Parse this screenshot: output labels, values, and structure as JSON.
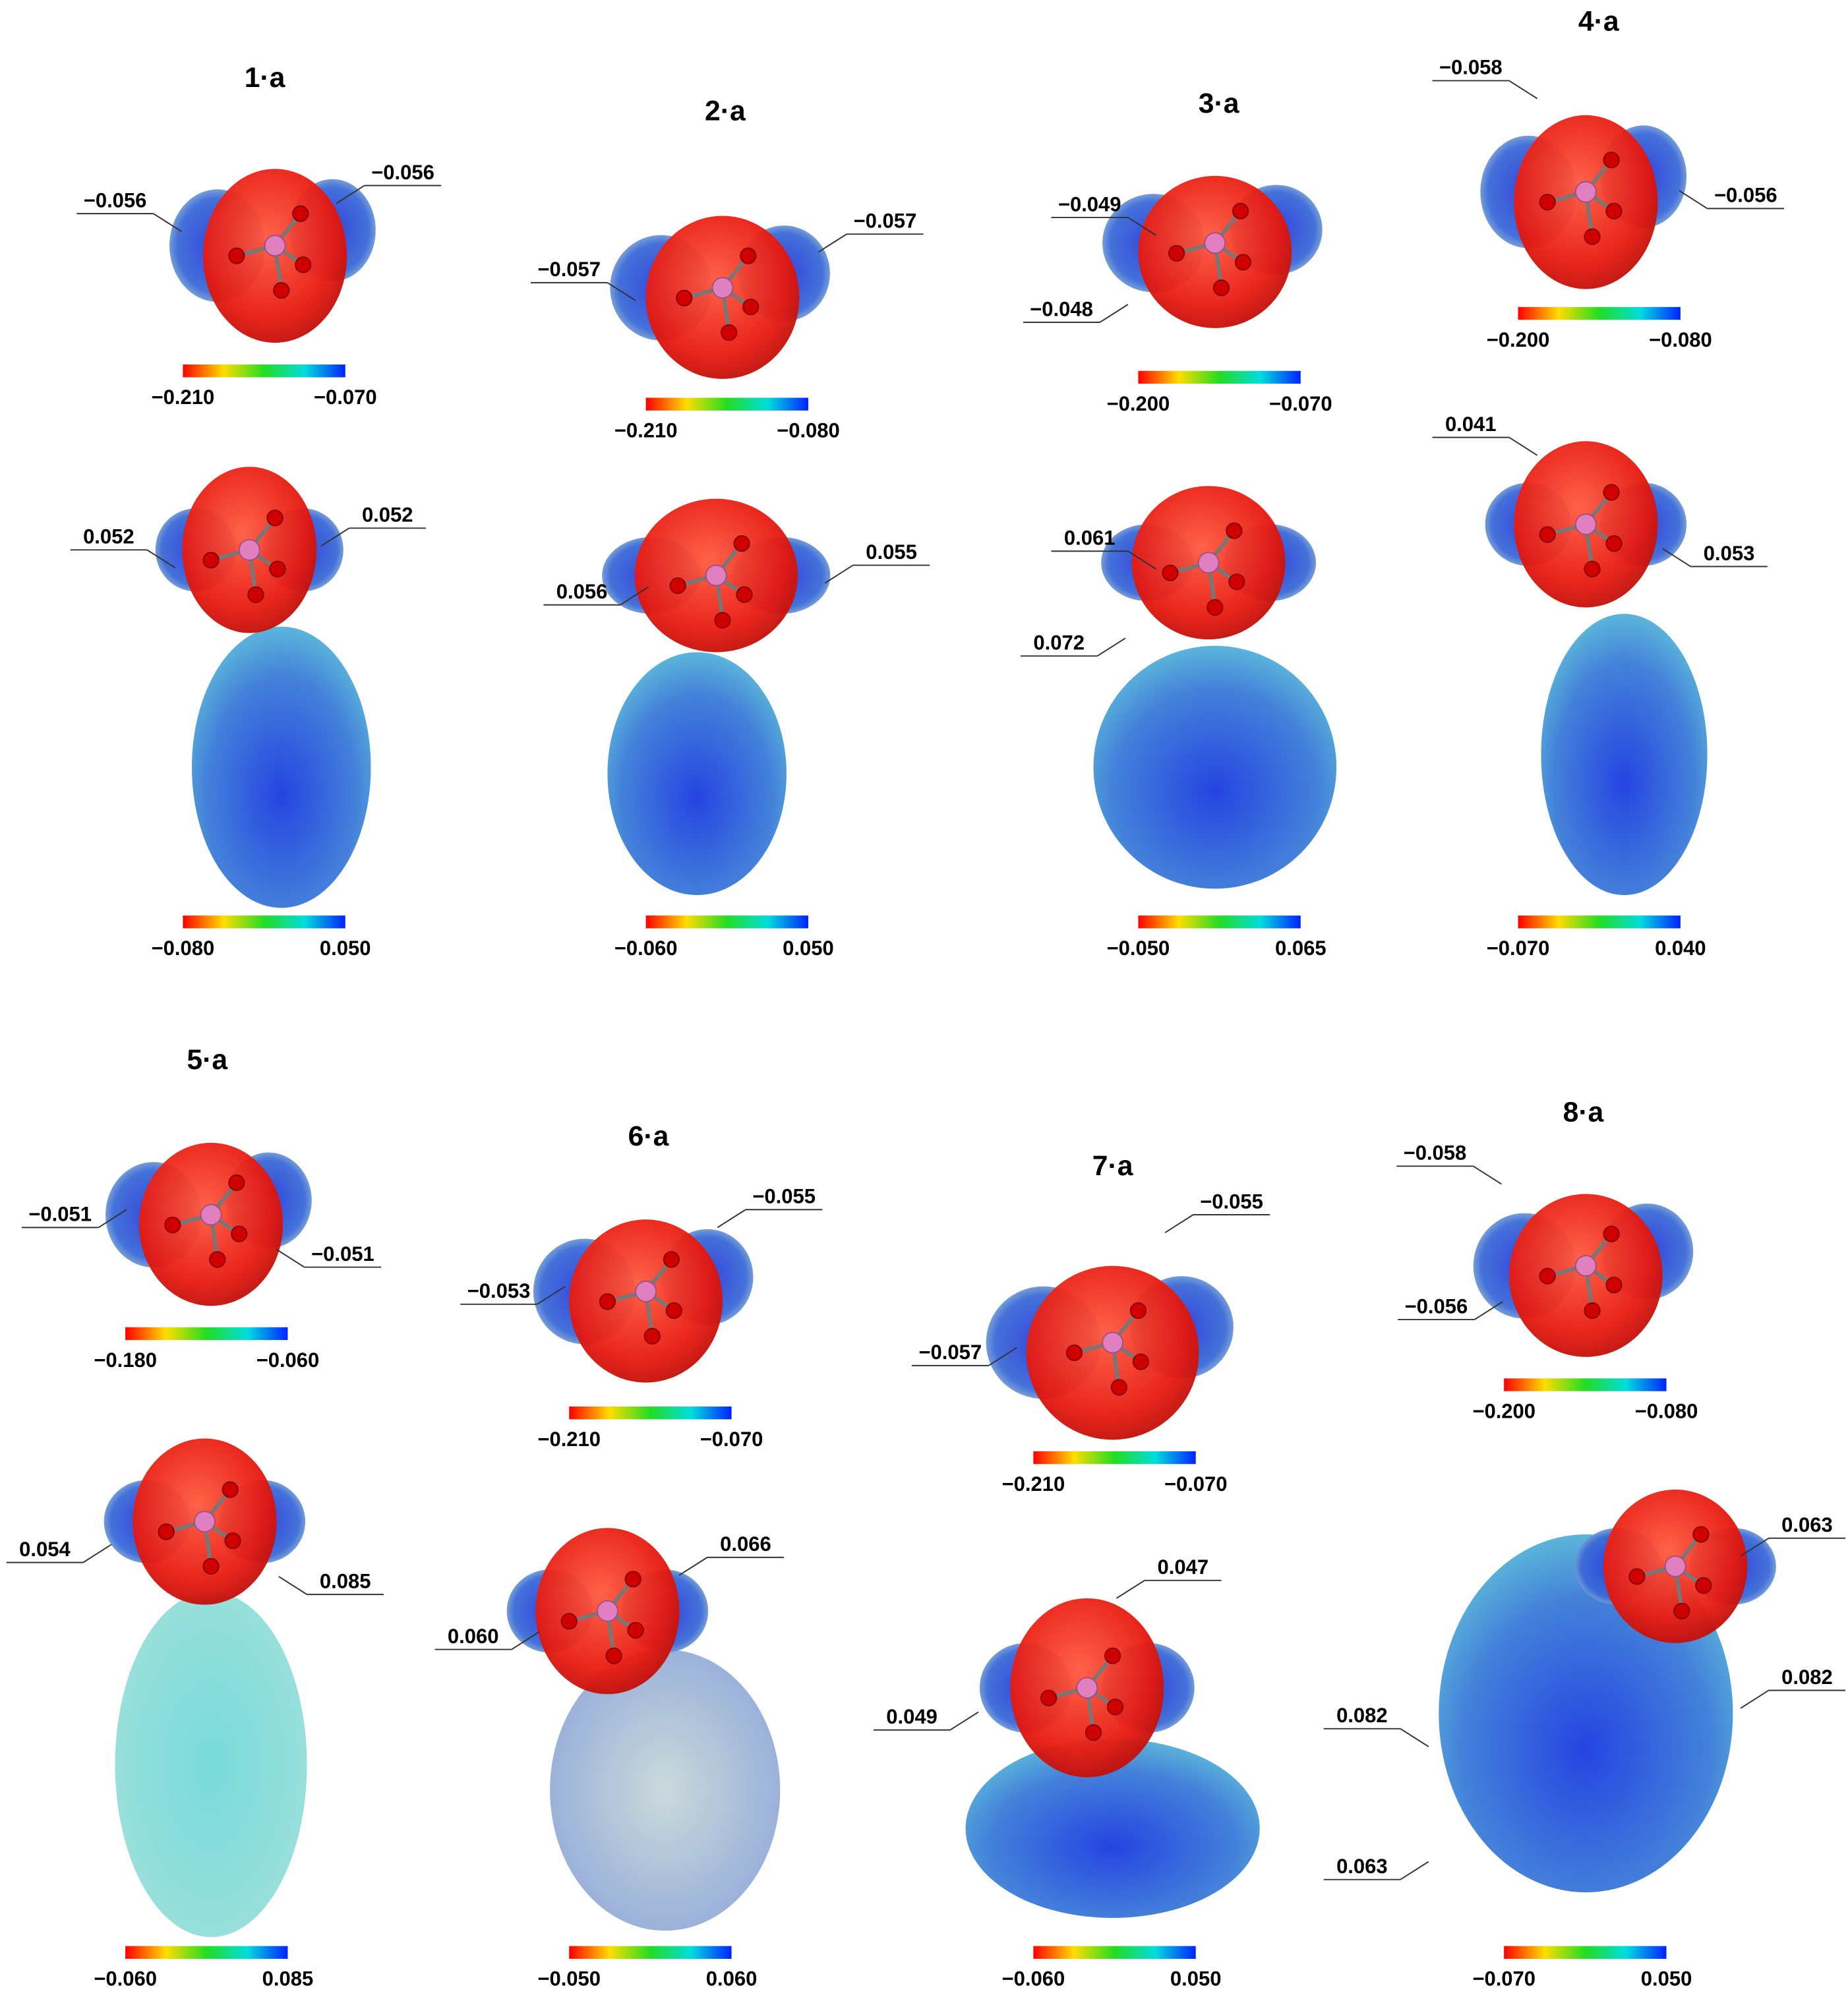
{
  "panels": [
    {
      "title": "1·a",
      "acid": {
        "labels": [
          "−0.056",
          "−0.056"
        ],
        "scale": [
          "−0.210",
          "−0.070"
        ]
      },
      "complex": {
        "labels": [
          "0.052",
          "0.052"
        ],
        "scale": [
          "−0.080",
          "0.050"
        ]
      }
    },
    {
      "title": "2·a",
      "acid": {
        "labels": [
          "−0.057",
          "−0.057"
        ],
        "scale": [
          "−0.210",
          "−0.080"
        ]
      },
      "complex": {
        "labels": [
          "0.056",
          "0.055"
        ],
        "scale": [
          "−0.060",
          "0.050"
        ]
      }
    },
    {
      "title": "3·a",
      "acid": {
        "labels": [
          "−0.049",
          "−0.048"
        ],
        "scale": [
          "−0.200",
          "−0.070"
        ]
      },
      "complex": {
        "labels": [
          "0.061",
          "0.072"
        ],
        "scale": [
          "−0.050",
          "0.065"
        ]
      }
    },
    {
      "title": "4·a",
      "acid": {
        "labels": [
          "−0.058",
          "−0.056"
        ],
        "scale": [
          "−0.200",
          "−0.080"
        ]
      },
      "complex": {
        "labels": [
          "0.041",
          "0.053"
        ],
        "scale": [
          "−0.070",
          "0.040"
        ]
      }
    },
    {
      "title": "5·a",
      "acid": {
        "labels": [
          "−0.051",
          "−0.051"
        ],
        "scale": [
          "−0.180",
          "−0.060"
        ]
      },
      "complex": {
        "labels": [
          "0.054",
          "0.085"
        ],
        "scale": [
          "−0.060",
          "0.085"
        ]
      }
    },
    {
      "title": "6·a",
      "acid": {
        "labels": [
          "−0.053",
          "−0.055"
        ],
        "scale": [
          "−0.210",
          "−0.070"
        ]
      },
      "complex": {
        "labels": [
          "0.060",
          "0.066"
        ],
        "scale": [
          "−0.050",
          "0.060"
        ]
      }
    },
    {
      "title": "7·a",
      "acid": {
        "labels": [
          "−0.057",
          "−0.055"
        ],
        "scale": [
          "−0.210",
          "−0.070"
        ]
      },
      "complex": {
        "labels": [
          "0.047",
          "0.049"
        ],
        "scale": [
          "−0.060",
          "0.050"
        ]
      }
    },
    {
      "title": "8·a",
      "acid": {
        "labels": [
          "−0.058",
          "−0.056"
        ],
        "scale": [
          "−0.200",
          "−0.080"
        ]
      },
      "complex": {
        "labels": [
          "0.063",
          "0.082",
          "0.082",
          "0.063"
        ],
        "scale": [
          "−0.070",
          "0.050"
        ]
      }
    }
  ]
}
